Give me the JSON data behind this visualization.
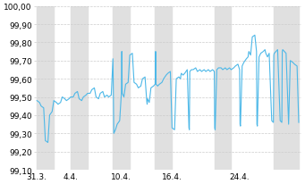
{
  "ylim": [
    99.1,
    100.0
  ],
  "yticks": [
    99.1,
    99.2,
    99.3,
    99.4,
    99.5,
    99.6,
    99.7,
    99.8,
    99.9,
    100.0
  ],
  "ytick_labels": [
    "99,10",
    "99,20",
    "99,30",
    "99,40",
    "99,50",
    "99,60",
    "99,70",
    "99,80",
    "99,90",
    "100,00"
  ],
  "xtick_positions": [
    0,
    4,
    10,
    16,
    24
  ],
  "xtick_labels": [
    "31.3.",
    "4.4.",
    "10.4.",
    "16.4.",
    "24.4."
  ],
  "line_color": "#4db8e8",
  "background_color": "#ffffff",
  "band_color": "#e0e0e0",
  "grid_color": "#cccccc",
  "band_ranges": [
    [
      0,
      2
    ],
    [
      4,
      6
    ],
    [
      9,
      11
    ],
    [
      14,
      16
    ],
    [
      21,
      23
    ],
    [
      28,
      31
    ]
  ],
  "x": [
    0.0,
    0.3,
    0.5,
    0.8,
    1.0,
    1.3,
    1.5,
    1.8,
    2.0,
    2.3,
    2.5,
    2.8,
    3.0,
    3.3,
    3.5,
    3.8,
    4.0,
    4.3,
    4.5,
    4.8,
    5.0,
    5.3,
    5.5,
    5.8,
    6.0,
    6.3,
    6.5,
    6.8,
    7.0,
    7.3,
    7.5,
    7.8,
    8.0,
    8.3,
    8.5,
    8.8,
    9.0,
    9.05,
    9.1,
    9.3,
    9.5,
    9.8,
    10.0,
    10.05,
    10.1,
    10.3,
    10.5,
    10.8,
    11.0,
    11.3,
    11.5,
    11.8,
    12.0,
    12.3,
    12.5,
    12.8,
    13.0,
    13.05,
    13.1,
    13.3,
    13.5,
    13.8,
    14.0,
    14.05,
    14.1,
    14.3,
    14.5,
    14.8,
    15.0,
    15.3,
    15.5,
    15.8,
    16.0,
    16.3,
    16.5,
    16.8,
    17.0,
    17.05,
    17.1,
    17.3,
    17.5,
    17.8,
    18.0,
    18.05,
    18.1,
    18.3,
    18.5,
    18.8,
    19.0,
    19.3,
    19.5,
    19.8,
    20.0,
    20.3,
    20.5,
    20.8,
    21.0,
    21.05,
    21.1,
    21.3,
    21.5,
    21.8,
    22.0,
    22.3,
    22.5,
    22.8,
    23.0,
    23.3,
    23.5,
    23.8,
    24.0,
    24.05,
    24.1,
    24.3,
    24.5,
    24.8,
    25.0,
    25.05,
    25.1,
    25.3,
    25.5,
    25.8,
    26.0,
    26.05,
    26.1,
    26.3,
    26.5,
    26.8,
    27.0,
    27.05,
    27.1,
    27.3,
    27.5,
    27.8,
    28.0,
    28.05,
    28.1,
    28.3,
    28.5,
    28.8,
    29.0,
    29.05,
    29.1,
    29.3,
    29.5,
    29.8,
    30.0,
    30.3,
    30.5,
    30.8,
    31.0
  ],
  "y": [
    99.48,
    99.47,
    99.45,
    99.44,
    99.26,
    99.25,
    99.4,
    99.42,
    99.48,
    99.47,
    99.46,
    99.47,
    99.5,
    99.49,
    99.48,
    99.49,
    99.5,
    99.5,
    99.52,
    99.53,
    99.49,
    99.48,
    99.5,
    99.51,
    99.52,
    99.52,
    99.54,
    99.55,
    99.5,
    99.49,
    99.52,
    99.53,
    99.5,
    99.51,
    99.5,
    99.51,
    99.71,
    99.53,
    99.3,
    99.32,
    99.35,
    99.37,
    99.52,
    99.75,
    99.52,
    99.5,
    99.57,
    99.58,
    99.73,
    99.74,
    99.58,
    99.57,
    99.55,
    99.56,
    99.6,
    99.61,
    99.48,
    99.46,
    99.49,
    99.47,
    99.55,
    99.56,
    99.57,
    99.75,
    99.57,
    99.56,
    99.57,
    99.58,
    99.6,
    99.62,
    99.63,
    99.64,
    99.33,
    99.32,
    99.6,
    99.61,
    99.6,
    99.62,
    99.63,
    99.62,
    99.63,
    99.65,
    99.33,
    99.32,
    99.64,
    99.65,
    99.65,
    99.66,
    99.64,
    99.65,
    99.64,
    99.65,
    99.64,
    99.65,
    99.64,
    99.65,
    99.64,
    99.33,
    99.32,
    99.65,
    99.66,
    99.66,
    99.65,
    99.66,
    99.65,
    99.66,
    99.65,
    99.66,
    99.67,
    99.68,
    99.65,
    99.35,
    99.34,
    99.67,
    99.69,
    99.71,
    99.72,
    99.74,
    99.75,
    99.73,
    99.83,
    99.84,
    99.75,
    99.35,
    99.34,
    99.72,
    99.74,
    99.75,
    99.76,
    99.75,
    99.74,
    99.72,
    99.74,
    99.37,
    99.36,
    99.73,
    99.74,
    99.75,
    99.76,
    99.37,
    99.36,
    99.75,
    99.76,
    99.75,
    99.74,
    99.35,
    99.7,
    99.69,
    99.68,
    99.67,
    99.36
  ]
}
